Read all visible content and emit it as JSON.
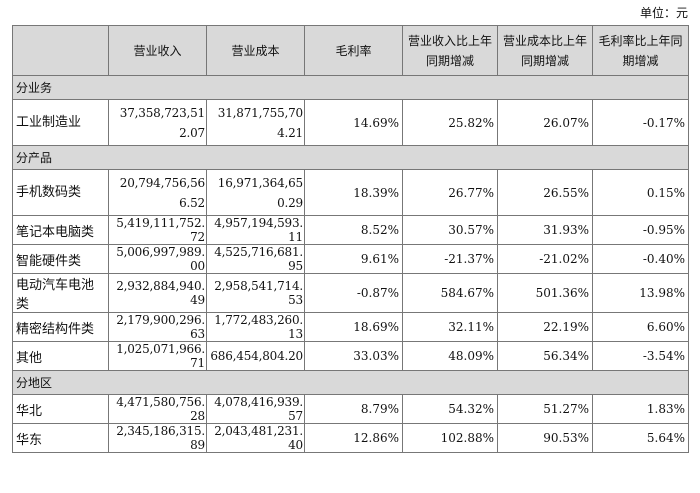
{
  "unit_label": "单位：元",
  "headers": [
    "",
    "营业收入",
    "营业成本",
    "毛利率",
    "营业收入比上年同期增减",
    "营业成本比上年同期增减",
    "毛利率比上年同期增减"
  ],
  "sections": [
    {
      "title": "分业务",
      "rows": [
        {
          "name": "工业制造业",
          "revenue": "37,358,723,512.07",
          "cost": "31,871,755,704.21",
          "margin": "14.69%",
          "revenue_change": "25.82%",
          "cost_change": "26.07%",
          "margin_change": "-0.17%"
        }
      ]
    },
    {
      "title": "分产品",
      "rows": [
        {
          "name": "手机数码类",
          "revenue": "20,794,756,566.52",
          "cost": "16,971,364,650.29",
          "margin": "18.39%",
          "revenue_change": "26.77%",
          "cost_change": "26.55%",
          "margin_change": "0.15%"
        },
        {
          "name": "笔记本电脑类",
          "revenue": "5,419,111,752.72",
          "cost": "4,957,194,593.11",
          "margin": "8.52%",
          "revenue_change": "30.57%",
          "cost_change": "31.93%",
          "margin_change": "-0.95%"
        },
        {
          "name": "智能硬件类",
          "revenue": "5,006,997,989.00",
          "cost": "4,525,716,681.95",
          "margin": "9.61%",
          "revenue_change": "-21.37%",
          "cost_change": "-21.02%",
          "margin_change": "-0.40%"
        },
        {
          "name": "电动汽车电池类",
          "revenue": "2,932,884,940.49",
          "cost": "2,958,541,714.53",
          "margin": "-0.87%",
          "revenue_change": "584.67%",
          "cost_change": "501.36%",
          "margin_change": "13.98%"
        },
        {
          "name": "精密结构件类",
          "revenue": "2,179,900,296.63",
          "cost": "1,772,483,260.13",
          "margin": "18.69%",
          "revenue_change": "32.11%",
          "cost_change": "22.19%",
          "margin_change": "6.60%"
        },
        {
          "name": "其他",
          "revenue": "1,025,071,966.71",
          "cost": "686,454,804.20",
          "margin": "33.03%",
          "revenue_change": "48.09%",
          "cost_change": "56.34%",
          "margin_change": "-3.54%"
        }
      ]
    },
    {
      "title": "分地区",
      "rows": [
        {
          "name": "华北",
          "revenue": "4,471,580,756.28",
          "cost": "4,078,416,939.57",
          "margin": "8.79%",
          "revenue_change": "54.32%",
          "cost_change": "51.27%",
          "margin_change": "1.83%"
        },
        {
          "name": "华东",
          "revenue": "2,345,186,315.89",
          "cost": "2,043,481,231.40",
          "margin": "12.86%",
          "revenue_change": "102.88%",
          "cost_change": "90.53%",
          "margin_change": "5.64%"
        }
      ]
    }
  ]
}
